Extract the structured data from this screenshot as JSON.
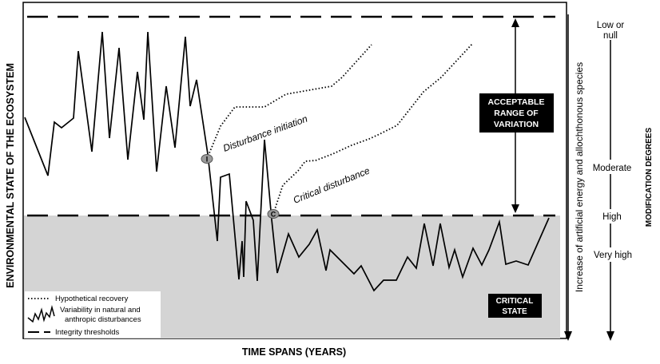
{
  "labels": {
    "y_axis": "ENVIRONMENTAL STATE OF THE ECOSYSTEM",
    "x_axis": "TIME SPANS (YEARS)",
    "acceptable_range": [
      "ACCEPTABLE",
      "RANGE OF",
      "VARIATION"
    ],
    "critical_state": [
      "CRITICAL",
      "STATE"
    ],
    "disturbance_initiation": "Disturbance initiation",
    "critical_disturbance": "Critical disturbance",
    "marker_i": "I",
    "marker_c": "C",
    "energy_axis": "Increase of artificial energy and allochthonous species",
    "modification_degrees": "MODIFICATION DEGREES"
  },
  "modification_levels": {
    "low": [
      "Low or",
      "null"
    ],
    "moderate": "Moderate",
    "high": "High",
    "very_high": "Very high"
  },
  "legend": {
    "recovery": "Hypothetical recovery",
    "variability": [
      "Variability in natural and",
      "anthropic disturbances"
    ],
    "thresholds": "Integrity thresholds"
  },
  "colors": {
    "critical_fill": "#d4d4d4",
    "label_box": "#000000",
    "marker_fill": "#9a9a9a"
  }
}
